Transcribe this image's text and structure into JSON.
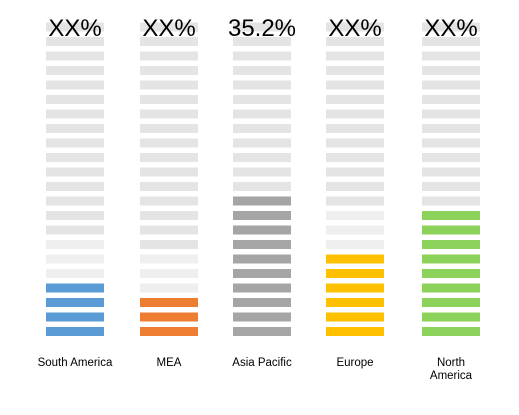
{
  "chart_data": {
    "type": "bar",
    "categories": [
      "South America",
      "MEA",
      "Asia Pacific",
      "Europe",
      "North America"
    ],
    "category_label_lines": [
      [
        "South America"
      ],
      [
        "MEA"
      ],
      [
        "Asia Pacific"
      ],
      [
        "Europe"
      ],
      [
        "North",
        "America"
      ]
    ],
    "value_labels": [
      "XX%",
      "XX%",
      "35.2%",
      "XX%",
      "XX%"
    ],
    "filled_segments": [
      4,
      3,
      10,
      6,
      9
    ],
    "total_segments": 22,
    "colors": [
      "#5B9BD5",
      "#ED7D31",
      "#A5A5A5",
      "#FFC000",
      "#8CD25A"
    ],
    "empty_color": "#E4E4E4",
    "title": "",
    "xlabel": "",
    "ylabel": "",
    "grid": false
  }
}
